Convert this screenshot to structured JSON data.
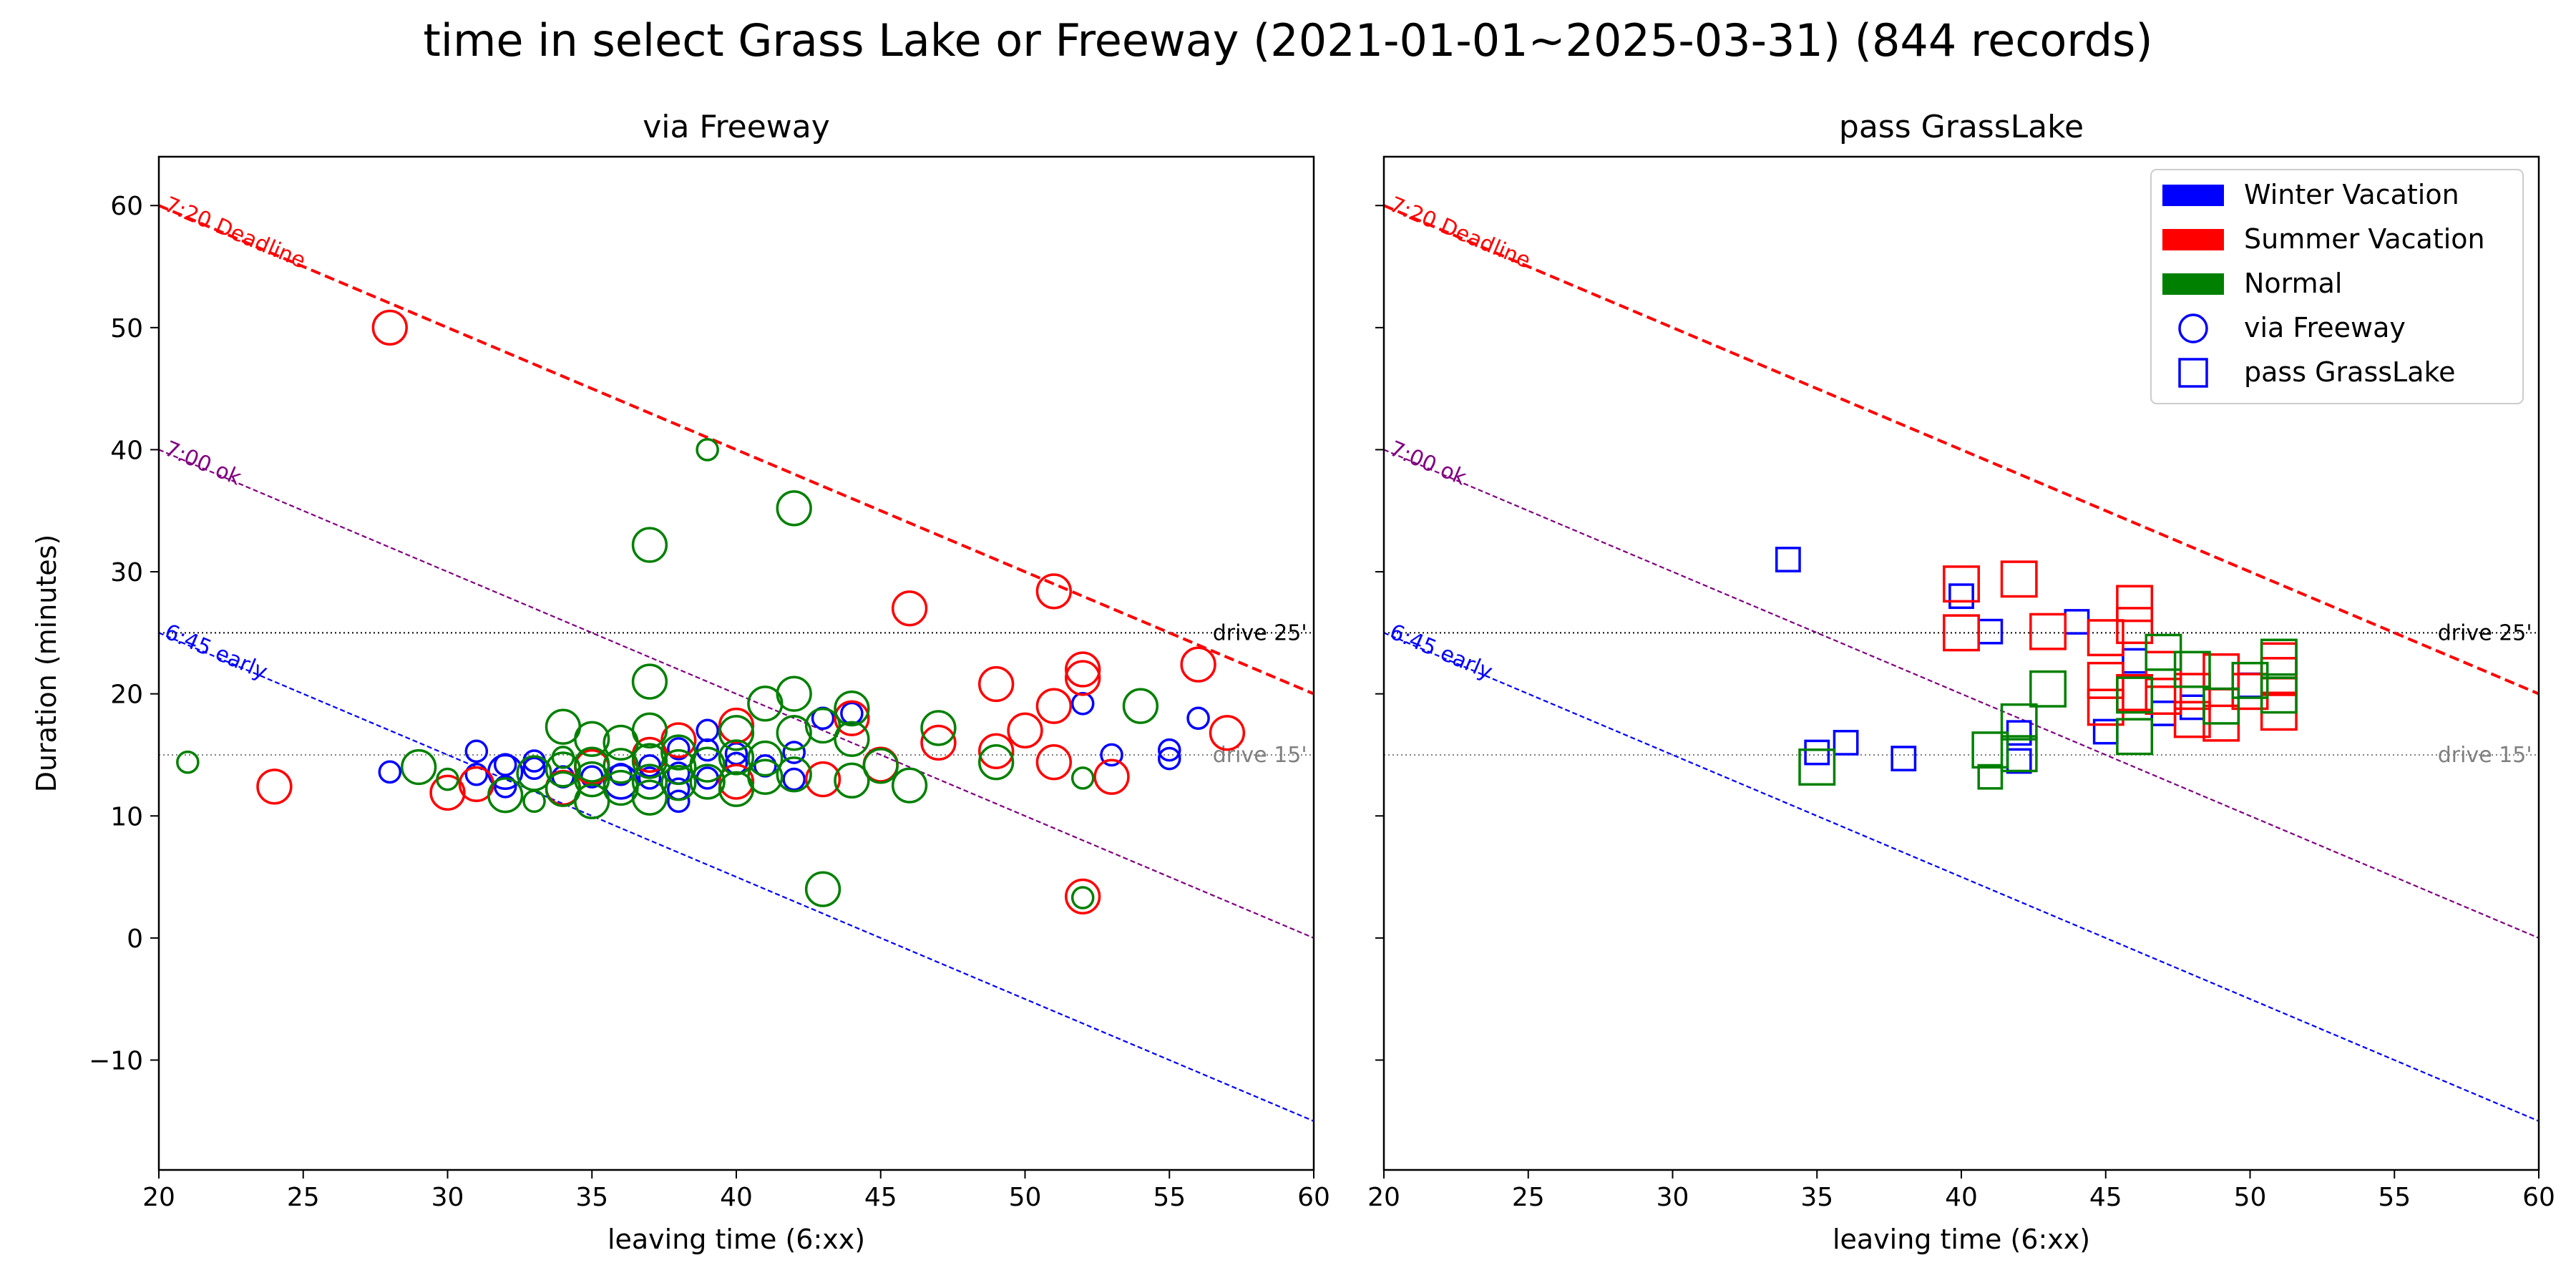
{
  "figure_title": "time in select Grass Lake or Freeway (2021-01-01~2025-03-31) (844 records)",
  "legend": {
    "entries": [
      {
        "label": "Winter Vacation",
        "kind": "patch",
        "color": "#0000ff"
      },
      {
        "label": "Summer Vacation",
        "kind": "patch",
        "color": "#ff0000"
      },
      {
        "label": "Normal",
        "kind": "patch",
        "color": "#008000"
      },
      {
        "label": "via Freeway",
        "kind": "circle",
        "color": "#0000ff"
      },
      {
        "label": "pass GrassLake",
        "kind": "square",
        "color": "#0000ff"
      }
    ]
  },
  "reference_lines": {
    "deadline_720": {
      "label": "7:20 Deadline",
      "color": "#ff0000",
      "points": [
        [
          20,
          60
        ],
        [
          60,
          20
        ]
      ]
    },
    "ok_700": {
      "label": "7:00 ok",
      "color": "#800080",
      "points": [
        [
          20,
          40
        ],
        [
          60,
          0
        ]
      ]
    },
    "early_645": {
      "label": "6:45 early",
      "color": "#0000ff",
      "points": [
        [
          20,
          25
        ],
        [
          60,
          -15
        ]
      ]
    },
    "drive_25": {
      "label": "drive 25'",
      "color": "#000000",
      "y": 25
    },
    "drive_15": {
      "label": "drive 15'",
      "color": "#808080",
      "y": 15
    }
  },
  "chart_data": [
    {
      "type": "scatter",
      "title": "via Freeway",
      "xlabel": "leaving time (6:xx)",
      "ylabel": "Duration (minutes)",
      "xlim": [
        20,
        60
      ],
      "ylim": [
        -19,
        64
      ],
      "xticks": [
        20,
        25,
        30,
        35,
        40,
        45,
        50,
        55,
        60
      ],
      "yticks": [
        -10,
        0,
        10,
        20,
        30,
        40,
        50,
        60
      ],
      "marker": "circle",
      "series": [
        {
          "name": "Winter Vacation",
          "color": "#0000ff",
          "points": [
            [
              28,
              13.6,
              1
            ],
            [
              31,
              13.4,
              1
            ],
            [
              31,
              15.3,
              1
            ],
            [
              32,
              12.4,
              1
            ],
            [
              32,
              13.6,
              2
            ],
            [
              32,
              14.2,
              1
            ],
            [
              33,
              14.5,
              1
            ],
            [
              33,
              13.9,
              1
            ],
            [
              34,
              13.2,
              1
            ],
            [
              35,
              13.2,
              1
            ],
            [
              36,
              12.8,
              2
            ],
            [
              36,
              13.4,
              1
            ],
            [
              37,
              13.1,
              1
            ],
            [
              37,
              14.1,
              1
            ],
            [
              38,
              11.2,
              1
            ],
            [
              38,
              12.2,
              1
            ],
            [
              38,
              13.5,
              1
            ],
            [
              38,
              15.5,
              1
            ],
            [
              39,
              13.1,
              1
            ],
            [
              39,
              15.4,
              1
            ],
            [
              39,
              17.0,
              1
            ],
            [
              40,
              14.3,
              1
            ],
            [
              40,
              15.1,
              1
            ],
            [
              41,
              14.1,
              1
            ],
            [
              42,
              13.0,
              1
            ],
            [
              42,
              15.2,
              1
            ],
            [
              43,
              18.0,
              1
            ],
            [
              44,
              18.4,
              1
            ],
            [
              52,
              19.2,
              1
            ],
            [
              53,
              15.0,
              1
            ],
            [
              55,
              14.7,
              1
            ],
            [
              55,
              15.4,
              1
            ],
            [
              56,
              18.0,
              1
            ]
          ]
        },
        {
          "name": "Summer Vacation",
          "color": "#ff0000",
          "points": [
            [
              24,
              12.4,
              2
            ],
            [
              28,
              50.0,
              2
            ],
            [
              30,
              11.9,
              2
            ],
            [
              31,
              12.6,
              2
            ],
            [
              34,
              12.3,
              2
            ],
            [
              35,
              14.0,
              2
            ],
            [
              37,
              15.0,
              2
            ],
            [
              38,
              16.2,
              2
            ],
            [
              40,
              12.8,
              2
            ],
            [
              40,
              17.4,
              2
            ],
            [
              43,
              13.0,
              2
            ],
            [
              44,
              18.0,
              2
            ],
            [
              45,
              14.2,
              2
            ],
            [
              46,
              27.0,
              2
            ],
            [
              47,
              16.0,
              2
            ],
            [
              49,
              15.3,
              2
            ],
            [
              49,
              20.8,
              2
            ],
            [
              50,
              17.0,
              2
            ],
            [
              51,
              14.4,
              2
            ],
            [
              51,
              19.0,
              2
            ],
            [
              51,
              28.4,
              2
            ],
            [
              52,
              3.4,
              2
            ],
            [
              52,
              21.3,
              2
            ],
            [
              52,
              22.0,
              2
            ],
            [
              53,
              13.2,
              2
            ],
            [
              56,
              22.4,
              2
            ],
            [
              57,
              16.8,
              2
            ]
          ]
        },
        {
          "name": "Normal",
          "color": "#008000",
          "points": [
            [
              21,
              14.4,
              1
            ],
            [
              29,
              14.0,
              2
            ],
            [
              30,
              13.0,
              1
            ],
            [
              32,
              11.7,
              2
            ],
            [
              33,
              11.2,
              1
            ],
            [
              33,
              13.5,
              2
            ],
            [
              34,
              12.2,
              2
            ],
            [
              34,
              13.8,
              2
            ],
            [
              34,
              14.8,
              1
            ],
            [
              34,
              17.3,
              2
            ],
            [
              35,
              11.2,
              2
            ],
            [
              35,
              13.0,
              2
            ],
            [
              35,
              14.2,
              2
            ],
            [
              35,
              16.3,
              2
            ],
            [
              36,
              12.3,
              2
            ],
            [
              36,
              14.1,
              2
            ],
            [
              36,
              16.0,
              2
            ],
            [
              37,
              11.5,
              2
            ],
            [
              37,
              12.8,
              2
            ],
            [
              37,
              14.5,
              2
            ],
            [
              37,
              17.0,
              2
            ],
            [
              37,
              21.0,
              2
            ],
            [
              37,
              32.2,
              2
            ],
            [
              38,
              12.7,
              2
            ],
            [
              38,
              14.0,
              2
            ],
            [
              38,
              15.2,
              2
            ],
            [
              39,
              12.8,
              2
            ],
            [
              39,
              14.2,
              2
            ],
            [
              39,
              40.0,
              1
            ],
            [
              40,
              12.2,
              2
            ],
            [
              40,
              14.8,
              2
            ],
            [
              40,
              16.8,
              2
            ],
            [
              41,
              13.2,
              2
            ],
            [
              41,
              14.7,
              2
            ],
            [
              41,
              19.2,
              2
            ],
            [
              42,
              13.4,
              2
            ],
            [
              42,
              16.8,
              2
            ],
            [
              42,
              20.0,
              2
            ],
            [
              42,
              35.2,
              2
            ],
            [
              43,
              4.0,
              2
            ],
            [
              43,
              17.4,
              2
            ],
            [
              44,
              12.9,
              2
            ],
            [
              44,
              16.3,
              2
            ],
            [
              44,
              18.8,
              2
            ],
            [
              45,
              14.1,
              2
            ],
            [
              46,
              12.5,
              2
            ],
            [
              47,
              17.2,
              2
            ],
            [
              49,
              14.4,
              2
            ],
            [
              52,
              3.3,
              1
            ],
            [
              52,
              13.1,
              1
            ],
            [
              54,
              19.0,
              2
            ]
          ]
        }
      ]
    },
    {
      "type": "scatter",
      "title": "pass GrassLake",
      "xlabel": "leaving time (6:xx)",
      "ylabel": "",
      "xlim": [
        20,
        60
      ],
      "ylim": [
        -19,
        64
      ],
      "xticks": [
        20,
        25,
        30,
        35,
        40,
        45,
        50,
        55,
        60
      ],
      "yticks": [
        -10,
        0,
        10,
        20,
        30,
        40,
        50,
        60
      ],
      "marker": "square",
      "series": [
        {
          "name": "Winter Vacation",
          "color": "#0000ff",
          "points": [
            [
              34,
              31.0,
              1
            ],
            [
              35,
              15.2,
              1
            ],
            [
              36,
              16.0,
              1
            ],
            [
              38,
              14.7,
              1
            ],
            [
              40,
              28.0,
              1
            ],
            [
              41,
              25.1,
              1
            ],
            [
              42,
              14.5,
              1
            ],
            [
              42,
              16.8,
              1
            ],
            [
              44,
              25.9,
              1
            ],
            [
              45,
              16.9,
              1
            ],
            [
              46,
              22.7,
              1
            ],
            [
              47,
              18.4,
              1
            ],
            [
              48,
              18.9,
              1
            ],
            [
              50,
              20.7,
              1
            ]
          ]
        },
        {
          "name": "Summer Vacation",
          "color": "#ff0000",
          "points": [
            [
              40,
              25.0,
              2
            ],
            [
              40,
              29.0,
              2
            ],
            [
              42,
              29.4,
              2
            ],
            [
              43,
              25.1,
              2
            ],
            [
              45,
              18.9,
              2
            ],
            [
              45,
              21.1,
              2
            ],
            [
              45,
              24.6,
              2
            ],
            [
              46,
              20.1,
              2
            ],
            [
              46,
              25.6,
              2
            ],
            [
              46,
              27.4,
              2
            ],
            [
              47,
              19.8,
              2
            ],
            [
              47,
              22.0,
              2
            ],
            [
              48,
              17.9,
              2
            ],
            [
              48,
              20.2,
              2
            ],
            [
              49,
              17.6,
              2
            ],
            [
              49,
              21.8,
              2
            ],
            [
              50,
              20.2,
              2
            ],
            [
              51,
              18.5,
              2
            ],
            [
              51,
              21.5,
              2
            ],
            [
              51,
              22.7,
              2
            ]
          ]
        },
        {
          "name": "Normal",
          "color": "#008000",
          "points": [
            [
              35,
              14.0,
              2
            ],
            [
              41,
              13.2,
              1
            ],
            [
              41,
              15.4,
              2
            ],
            [
              42,
              15.1,
              2
            ],
            [
              42,
              17.7,
              2
            ],
            [
              43,
              20.4,
              2
            ],
            [
              46,
              16.5,
              2
            ],
            [
              46,
              19.9,
              2
            ],
            [
              47,
              23.4,
              2
            ],
            [
              48,
              22.0,
              2
            ],
            [
              49,
              19.0,
              2
            ],
            [
              50,
              21.1,
              2
            ],
            [
              51,
              19.9,
              2
            ],
            [
              51,
              23.0,
              2
            ]
          ]
        }
      ]
    }
  ]
}
